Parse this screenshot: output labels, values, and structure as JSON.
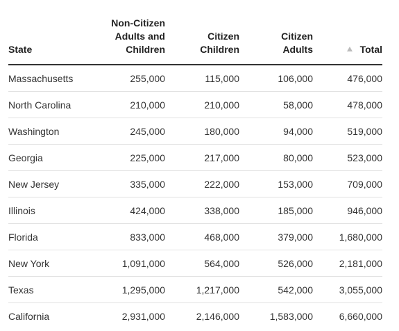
{
  "table": {
    "headers": {
      "state": [
        "State"
      ],
      "noncitizen": [
        "Non-Citizen",
        "Adults and",
        "Children"
      ],
      "citizen_children": [
        "Citizen",
        "Children"
      ],
      "citizen_adults": [
        "Citizen",
        "Adults"
      ],
      "total": [
        "Total"
      ]
    },
    "sort": {
      "column": "total",
      "direction": "ascending"
    },
    "rows": [
      {
        "state": "Massachusetts",
        "noncitizen": "255,000",
        "citizen_children": "115,000",
        "citizen_adults": "106,000",
        "total": "476,000"
      },
      {
        "state": "North Carolina",
        "noncitizen": "210,000",
        "citizen_children": "210,000",
        "citizen_adults": "58,000",
        "total": "478,000"
      },
      {
        "state": "Washington",
        "noncitizen": "245,000",
        "citizen_children": "180,000",
        "citizen_adults": "94,000",
        "total": "519,000"
      },
      {
        "state": "Georgia",
        "noncitizen": "225,000",
        "citizen_children": "217,000",
        "citizen_adults": "80,000",
        "total": "523,000"
      },
      {
        "state": "New Jersey",
        "noncitizen": "335,000",
        "citizen_children": "222,000",
        "citizen_adults": "153,000",
        "total": "709,000"
      },
      {
        "state": "Illinois",
        "noncitizen": "424,000",
        "citizen_children": "338,000",
        "citizen_adults": "185,000",
        "total": "946,000"
      },
      {
        "state": "Florida",
        "noncitizen": "833,000",
        "citizen_children": "468,000",
        "citizen_adults": "379,000",
        "total": "1,680,000"
      },
      {
        "state": "New York",
        "noncitizen": "1,091,000",
        "citizen_children": "564,000",
        "citizen_adults": "526,000",
        "total": "2,181,000"
      },
      {
        "state": "Texas",
        "noncitizen": "1,295,000",
        "citizen_children": "1,217,000",
        "citizen_adults": "542,000",
        "total": "3,055,000"
      },
      {
        "state": "California",
        "noncitizen": "2,931,000",
        "citizen_children": "2,146,000",
        "citizen_adults": "1,583,000",
        "total": "6,660,000"
      }
    ]
  }
}
